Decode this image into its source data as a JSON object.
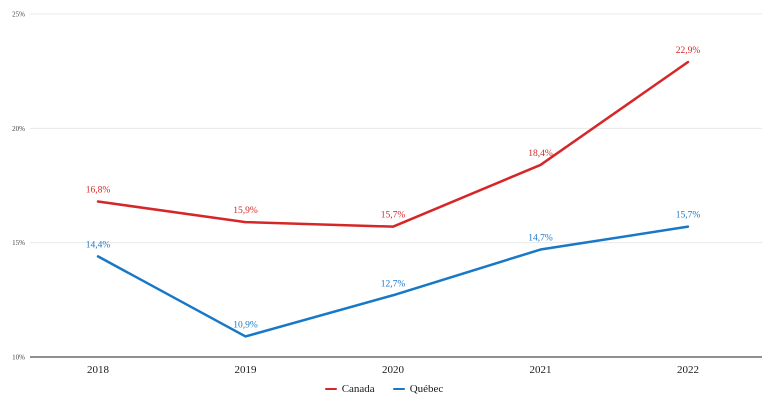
{
  "chart_data": {
    "type": "line",
    "x": [
      "2018",
      "2019",
      "2020",
      "2021",
      "2022"
    ],
    "series": [
      {
        "name": "Canada",
        "color": "#d62728",
        "values": [
          16.8,
          15.9,
          15.7,
          18.4,
          22.9
        ],
        "labels": [
          "16,8%",
          "15,9%",
          "15,7%",
          "18,4%",
          "22,9%"
        ]
      },
      {
        "name": "Québec",
        "color": "#1878c8",
        "values": [
          14.4,
          10.9,
          12.7,
          14.7,
          15.7
        ],
        "labels": [
          "14,4%",
          "10,9%",
          "12,7%",
          "14,7%",
          "15,7%"
        ]
      }
    ],
    "y_ticks": [
      10,
      15,
      20,
      25
    ],
    "y_tick_labels": [
      "10%",
      "15%",
      "20%",
      "25%"
    ],
    "ylim": [
      10,
      25
    ],
    "title": "",
    "xlabel": "",
    "ylabel": "",
    "grid": "horizontal",
    "legend_position": "bottom-center",
    "colors": {
      "gridline": "#e8e8e8",
      "axis_line": "#222222",
      "tick_label": "#444444",
      "x_label": "#1a1a1a",
      "background": "#ffffff"
    }
  }
}
